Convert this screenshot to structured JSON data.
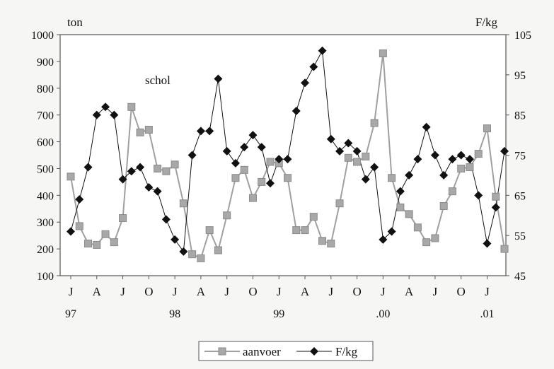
{
  "chart_data": {
    "type": "line",
    "annotation": "schol",
    "y_left_unit": "ton",
    "y_right_unit": "F/kg",
    "y_left_range": [
      100,
      1000
    ],
    "y_right_range": [
      45,
      105
    ],
    "y_left_ticks": [
      "1000",
      "900",
      "800",
      "700",
      "600",
      "500",
      "400",
      "300",
      "200",
      "100"
    ],
    "y_right_ticks": [
      "105",
      "95",
      "85",
      "75",
      "65",
      "55",
      "45"
    ],
    "x_month_labels": [
      "J",
      "A",
      "J",
      "O",
      "J",
      "A",
      "J",
      "O",
      "J",
      "A",
      "J",
      "O",
      "J",
      "A",
      "J",
      "O",
      "J"
    ],
    "x_year_labels": [
      "97",
      "98",
      "99",
      ".00",
      ".01"
    ],
    "grid": false,
    "legend_position": "bottom-center",
    "x": [
      "1997-01",
      "1997-02",
      "1997-03",
      "1997-04",
      "1997-05",
      "1997-06",
      "1997-07",
      "1997-08",
      "1997-09",
      "1997-10",
      "1997-11",
      "1997-12",
      "1998-01",
      "1998-02",
      "1998-03",
      "1998-04",
      "1998-05",
      "1998-06",
      "1998-07",
      "1998-08",
      "1998-09",
      "1998-10",
      "1998-11",
      "1998-12",
      "1999-01",
      "1999-02",
      "1999-03",
      "1999-04",
      "1999-05",
      "1999-06",
      "1999-07",
      "1999-08",
      "1999-09",
      "1999-10",
      "1999-11",
      "1999-12",
      "2000-01",
      "2000-02",
      "2000-03",
      "2000-04",
      "2000-05",
      "2000-06",
      "2000-07",
      "2000-08",
      "2000-09",
      "2000-10",
      "2000-11",
      "2000-12",
      "2001-01",
      "2001-02",
      "2001-03"
    ],
    "series": [
      {
        "name": "aanvoer",
        "axis": "left",
        "color": "#a0a0a0",
        "marker": "square",
        "values": [
          470,
          285,
          220,
          215,
          255,
          225,
          315,
          730,
          635,
          645,
          500,
          490,
          515,
          370,
          180,
          165,
          270,
          195,
          325,
          465,
          495,
          390,
          450,
          525,
          520,
          465,
          270,
          270,
          320,
          230,
          220,
          370,
          540,
          525,
          545,
          670,
          930,
          465,
          355,
          330,
          280,
          225,
          240,
          360,
          415,
          500,
          505,
          555,
          650,
          395,
          200
        ]
      },
      {
        "name": "F/kg",
        "axis": "right",
        "color": "#111111",
        "marker": "diamond",
        "values": [
          56,
          64,
          72,
          85,
          87,
          85,
          69,
          71,
          72,
          67,
          66,
          59,
          54,
          51,
          75,
          81,
          81,
          94,
          76,
          73,
          77,
          80,
          77,
          68,
          74,
          74,
          86,
          93,
          97,
          101,
          79,
          76,
          78,
          76,
          69,
          72,
          54,
          56,
          66,
          70,
          74,
          82,
          75,
          70,
          74,
          75,
          74,
          65,
          53,
          62,
          76
        ]
      }
    ]
  }
}
